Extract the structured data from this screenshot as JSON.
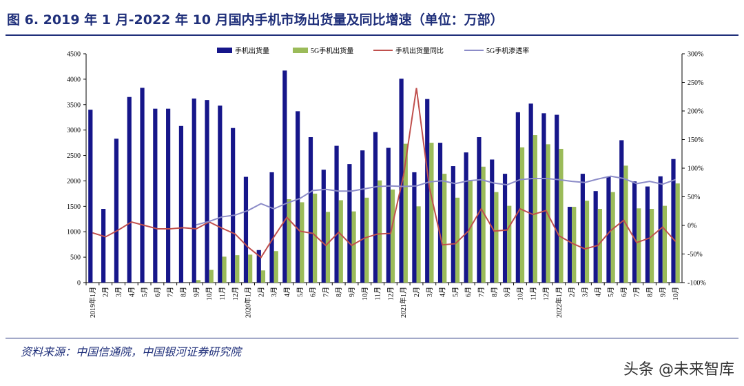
{
  "title": "图 6. 2019 年 1 月-2022 年 10 月国内手机市场出货量及同比增速（单位：万部）",
  "source": "资料来源：中国信通院，中国银河证券研究院",
  "watermark": "头条 @未来智库",
  "chart_data": {
    "type": "bar-line",
    "categories": [
      "2019年1月",
      "2月",
      "3月",
      "4月",
      "5月",
      "6月",
      "7月",
      "8月",
      "9月",
      "10月",
      "11月",
      "12月",
      "2020年1月",
      "2月",
      "3月",
      "4月",
      "5月",
      "6月",
      "7月",
      "8月",
      "9月",
      "10月",
      "11月",
      "12月",
      "2021年1月",
      "2月",
      "3月",
      "4月",
      "5月",
      "6月",
      "7月",
      "8月",
      "9月",
      "10月",
      "11月",
      "12月",
      "2022年1月",
      "2月",
      "3月",
      "4月",
      "5月",
      "6月",
      "7月",
      "8月",
      "9月",
      "10月"
    ],
    "series": [
      {
        "name": "手机出货量",
        "type": "bar",
        "color": "#16168a",
        "values": [
          3400,
          1450,
          2830,
          3650,
          3830,
          3420,
          3420,
          3080,
          3620,
          3590,
          3480,
          3040,
          2080,
          640,
          2170,
          4170,
          3370,
          2860,
          2220,
          2690,
          2330,
          2600,
          2960,
          2650,
          4010,
          2170,
          3610,
          2750,
          2290,
          2560,
          2860,
          2420,
          2140,
          3350,
          3520,
          3330,
          3300,
          1490,
          2140,
          1800,
          2080,
          2800,
          1990,
          1890,
          2090,
          2430
        ]
      },
      {
        "name": "5G手机出货量",
        "type": "bar",
        "color": "#9bbb59",
        "values": [
          null,
          null,
          null,
          null,
          null,
          null,
          null,
          null,
          50,
          250,
          510,
          540,
          550,
          240,
          620,
          1640,
          1580,
          1750,
          1390,
          1620,
          1400,
          1670,
          2010,
          1830,
          2730,
          1500,
          2750,
          2140,
          1670,
          2000,
          2280,
          1780,
          1510,
          2660,
          2900,
          2720,
          2630,
          1490,
          1610,
          1450,
          1780,
          2300,
          1460,
          1450,
          1510,
          1950
        ]
      },
      {
        "name": "手机出货量同比",
        "type": "line",
        "axis": "y2",
        "color": "#c0504d",
        "values": [
          -13,
          -20,
          -8,
          6,
          0,
          -6,
          -6,
          -4,
          -6,
          6,
          -5,
          -15,
          -38,
          -56,
          -20,
          14,
          -10,
          -14,
          -35,
          -12,
          -35,
          -22,
          -15,
          -14,
          87,
          240,
          66,
          -34,
          -32,
          -10,
          29,
          -10,
          -8,
          29,
          19,
          26,
          -18,
          -31,
          -41,
          -35,
          -9,
          9,
          -30,
          -22,
          -3,
          -28
        ]
      },
      {
        "name": "5G手机渗透率",
        "type": "line",
        "axis": "y2",
        "color": "#8c8cc8",
        "values": [
          null,
          null,
          null,
          null,
          null,
          null,
          null,
          null,
          1,
          7,
          15,
          18,
          26,
          38,
          29,
          39,
          47,
          61,
          63,
          60,
          60,
          64,
          68,
          69,
          68,
          69,
          76,
          78,
          73,
          78,
          80,
          74,
          71,
          80,
          82,
          82,
          80,
          77,
          75,
          81,
          86,
          82,
          73,
          77,
          72,
          80
        ]
      }
    ],
    "ylim": [
      0,
      4500
    ],
    "yticks": [
      0,
      500,
      1000,
      1500,
      2000,
      2500,
      3000,
      3500,
      4000,
      4500
    ],
    "y2lim": [
      -100,
      300
    ],
    "y2ticks": [
      {
        "value": -100,
        "label": "-100%"
      },
      {
        "value": -50,
        "label": "-50%"
      },
      {
        "value": 0,
        "label": "0%"
      },
      {
        "value": 50,
        "label": "50%"
      },
      {
        "value": 100,
        "label": "100%"
      },
      {
        "value": 150,
        "label": "150%"
      },
      {
        "value": 200,
        "label": "200%"
      },
      {
        "value": 250,
        "label": "250%"
      },
      {
        "value": 300,
        "label": "300%"
      }
    ]
  }
}
